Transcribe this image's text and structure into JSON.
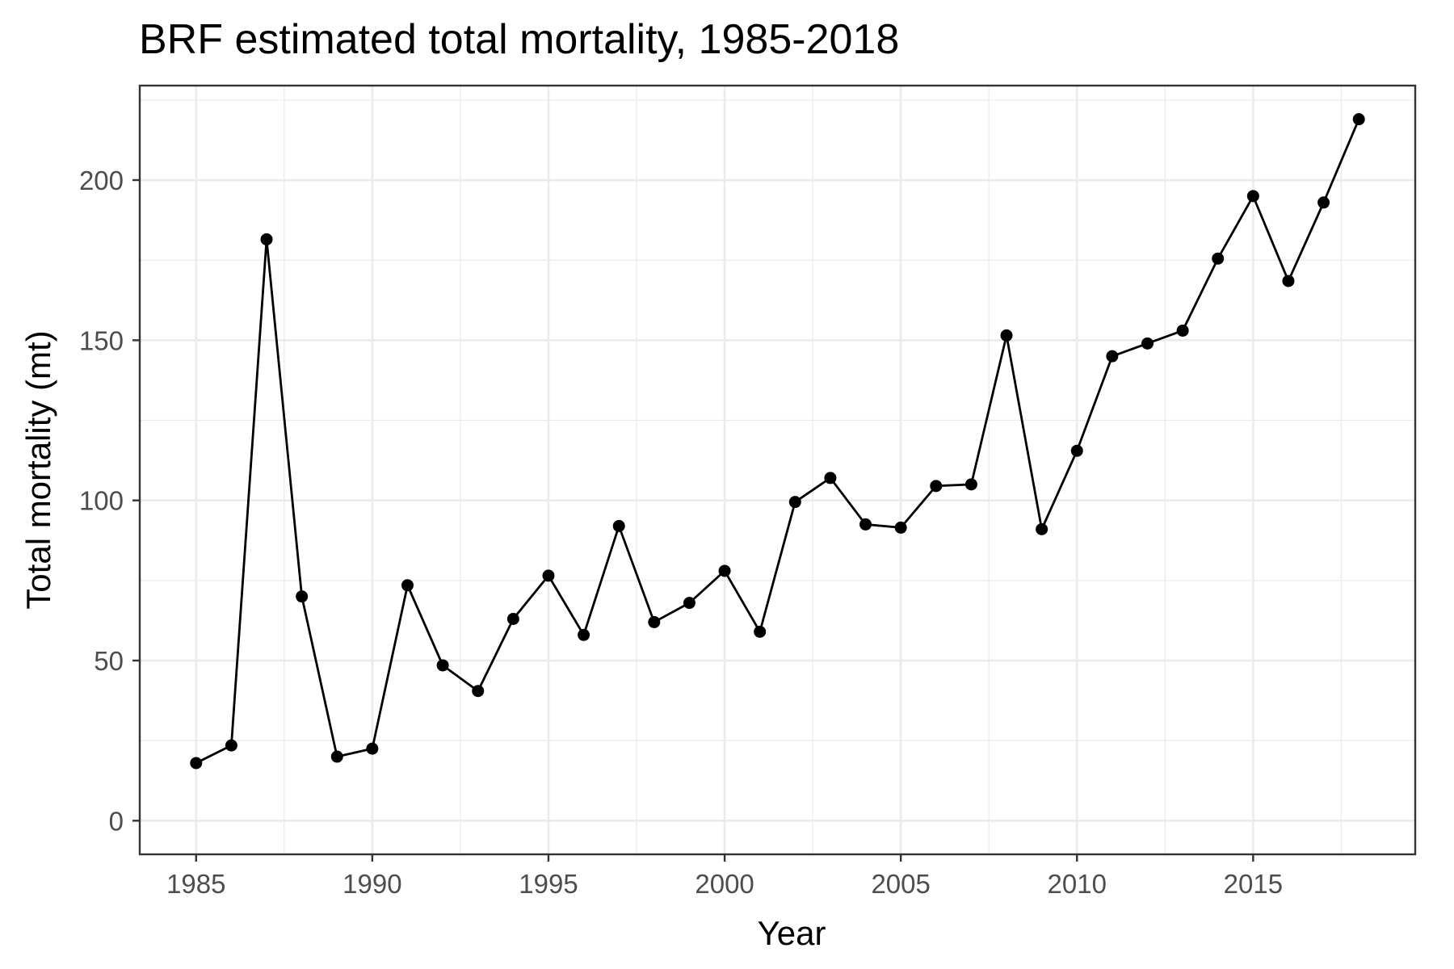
{
  "chart_data": {
    "type": "line",
    "title": "BRF estimated total mortality, 1985-2018",
    "xlabel": "Year",
    "ylabel": "Total mortality (mt)",
    "xlim": [
      1983.4,
      2019.6
    ],
    "ylim": [
      -10.5,
      229.5
    ],
    "x_ticks": [
      1985,
      1990,
      1995,
      2000,
      2005,
      2010,
      2015
    ],
    "x_minor_ticks": [
      1987.5,
      1992.5,
      1997.5,
      2002.5,
      2007.5,
      2012.5,
      2017.5
    ],
    "y_ticks": [
      0,
      50,
      100,
      150,
      200
    ],
    "y_minor_ticks": [
      25,
      75,
      125,
      175,
      225
    ],
    "grid": true,
    "legend": "none",
    "colors": {
      "line": "#000000",
      "point": "#000000",
      "grid": "#ebebeb",
      "panel_border": "#333333",
      "tick_text": "#4d4d4d"
    },
    "series": [
      {
        "x": [
          1985,
          1986,
          1987,
          1988,
          1989,
          1990,
          1991,
          1992,
          1993,
          1994,
          1995,
          1996,
          1997,
          1998,
          1999,
          2000,
          2001,
          2002,
          2003,
          2004,
          2005,
          2006,
          2007,
          2008,
          2009,
          2010,
          2011,
          2012,
          2013,
          2014,
          2015,
          2016,
          2017,
          2018
        ],
        "y": [
          18,
          23.5,
          181.5,
          70,
          20,
          22.5,
          73.5,
          48.5,
          40.5,
          63,
          76.5,
          58,
          92,
          62,
          68,
          78,
          59,
          99.5,
          107,
          92.5,
          91.5,
          104.5,
          105,
          151.5,
          91,
          115.5,
          145,
          149,
          153,
          175.5,
          195,
          168.5,
          193,
          219
        ]
      }
    ]
  }
}
